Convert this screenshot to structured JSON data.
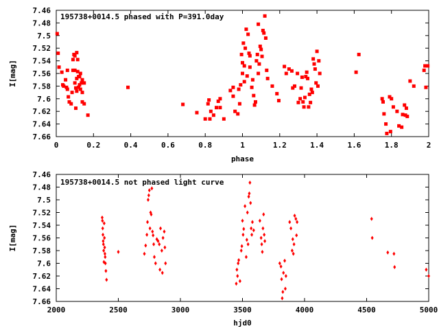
{
  "chart_data": [
    {
      "type": "scatter",
      "title": "195738+0014.5 phased with P=391.0day",
      "xlabel": "phase",
      "ylabel": "I[mag]",
      "xlim": [
        0,
        2
      ],
      "ylim": [
        7.46,
        7.66
      ],
      "y_inverted": true,
      "grid": false,
      "marker": "filled-square",
      "color": "#ff0000",
      "x_ticks": [
        "0",
        "0.2",
        "0.4",
        "0.6",
        "0.8",
        "1",
        "1.2",
        "1.4",
        "1.6",
        "1.8",
        "2"
      ],
      "y_ticks": [
        "7.46",
        "7.48",
        "7.5",
        "7.52",
        "7.54",
        "7.56",
        "7.58",
        "7.6",
        "7.62",
        "7.64",
        "7.66"
      ],
      "points": [
        [
          0.005,
          7.497
        ],
        [
          0.01,
          7.528
        ],
        [
          0.015,
          7.55
        ],
        [
          0.03,
          7.558
        ],
        [
          0.035,
          7.578
        ],
        [
          0.04,
          7.58
        ],
        [
          0.05,
          7.57
        ],
        [
          0.055,
          7.582
        ],
        [
          0.06,
          7.585
        ],
        [
          0.06,
          7.555
        ],
        [
          0.065,
          7.597
        ],
        [
          0.07,
          7.605
        ],
        [
          0.08,
          7.608
        ],
        [
          0.085,
          7.59
        ],
        [
          0.09,
          7.555
        ],
        [
          0.09,
          7.538
        ],
        [
          0.095,
          7.53
        ],
        [
          0.1,
          7.532
        ],
        [
          0.1,
          7.555
        ],
        [
          0.1,
          7.575
        ],
        [
          0.105,
          7.615
        ],
        [
          0.105,
          7.583
        ],
        [
          0.11,
          7.527
        ],
        [
          0.11,
          7.568
        ],
        [
          0.11,
          7.588
        ],
        [
          0.115,
          7.557
        ],
        [
          0.115,
          7.538
        ],
        [
          0.12,
          7.582
        ],
        [
          0.12,
          7.565
        ],
        [
          0.125,
          7.565
        ],
        [
          0.125,
          7.578
        ],
        [
          0.13,
          7.585
        ],
        [
          0.13,
          7.56
        ],
        [
          0.135,
          7.575
        ],
        [
          0.14,
          7.57
        ],
        [
          0.14,
          7.59
        ],
        [
          0.14,
          7.605
        ],
        [
          0.15,
          7.608
        ],
        [
          0.15,
          7.575
        ],
        [
          0.17,
          7.626
        ],
        [
          0.385,
          7.582
        ],
        [
          0.68,
          7.609
        ],
        [
          0.755,
          7.622
        ],
        [
          0.8,
          7.632
        ],
        [
          0.815,
          7.608
        ],
        [
          0.82,
          7.602
        ],
        [
          0.825,
          7.632
        ],
        [
          0.83,
          7.62
        ],
        [
          0.845,
          7.626
        ],
        [
          0.86,
          7.614
        ],
        [
          0.87,
          7.604
        ],
        [
          0.88,
          7.6
        ],
        [
          0.88,
          7.614
        ],
        [
          0.9,
          7.632
        ],
        [
          0.935,
          7.587
        ],
        [
          0.95,
          7.596
        ],
        [
          0.95,
          7.582
        ],
        [
          0.96,
          7.62
        ],
        [
          0.975,
          7.624
        ],
        [
          0.98,
          7.585
        ],
        [
          0.985,
          7.608
        ],
        [
          0.99,
          7.578
        ],
        [
          0.995,
          7.53
        ],
        [
          1.0,
          7.543
        ],
        [
          1.0,
          7.56
        ],
        [
          1.005,
          7.512
        ],
        [
          1.01,
          7.548
        ],
        [
          1.01,
          7.573
        ],
        [
          1.015,
          7.52
        ],
        [
          1.02,
          7.49
        ],
        [
          1.025,
          7.564
        ],
        [
          1.03,
          7.498
        ],
        [
          1.035,
          7.528
        ],
        [
          1.04,
          7.532
        ],
        [
          1.04,
          7.55
        ],
        [
          1.05,
          7.582
        ],
        [
          1.055,
          7.57
        ],
        [
          1.06,
          7.595
        ],
        [
          1.065,
          7.61
        ],
        [
          1.07,
          7.605
        ],
        [
          1.075,
          7.54
        ],
        [
          1.08,
          7.53
        ],
        [
          1.085,
          7.56
        ],
        [
          1.085,
          7.482
        ],
        [
          1.09,
          7.545
        ],
        [
          1.095,
          7.517
        ],
        [
          1.1,
          7.522
        ],
        [
          1.105,
          7.533
        ],
        [
          1.11,
          7.492
        ],
        [
          1.115,
          7.496
        ],
        [
          1.12,
          7.469
        ],
        [
          1.125,
          7.504
        ],
        [
          1.13,
          7.555
        ],
        [
          1.135,
          7.568
        ],
        [
          1.16,
          7.58
        ],
        [
          1.185,
          7.592
        ],
        [
          1.195,
          7.603
        ],
        [
          1.225,
          7.549
        ],
        [
          1.235,
          7.56
        ],
        [
          1.25,
          7.553
        ],
        [
          1.265,
          7.556
        ],
        [
          1.27,
          7.583
        ],
        [
          1.28,
          7.58
        ],
        [
          1.295,
          7.56
        ],
        [
          1.3,
          7.606
        ],
        [
          1.31,
          7.6
        ],
        [
          1.315,
          7.583
        ],
        [
          1.32,
          7.566
        ],
        [
          1.325,
          7.605
        ],
        [
          1.33,
          7.613
        ],
        [
          1.335,
          7.598
        ],
        [
          1.34,
          7.565
        ],
        [
          1.345,
          7.558
        ],
        [
          1.35,
          7.568
        ],
        [
          1.355,
          7.613
        ],
        [
          1.36,
          7.593
        ],
        [
          1.365,
          7.606
        ],
        [
          1.37,
          7.585
        ],
        [
          1.375,
          7.59
        ],
        [
          1.38,
          7.537
        ],
        [
          1.385,
          7.545
        ],
        [
          1.39,
          7.553
        ],
        [
          1.395,
          7.575
        ],
        [
          1.4,
          7.525
        ],
        [
          1.405,
          7.58
        ],
        [
          1.41,
          7.54
        ],
        [
          1.415,
          7.56
        ],
        [
          1.61,
          7.558
        ],
        [
          1.625,
          7.53
        ],
        [
          1.75,
          7.6
        ],
        [
          1.755,
          7.605
        ],
        [
          1.76,
          7.624
        ],
        [
          1.77,
          7.64
        ],
        [
          1.775,
          7.655
        ],
        [
          1.79,
          7.597
        ],
        [
          1.795,
          7.652
        ],
        [
          1.8,
          7.6
        ],
        [
          1.81,
          7.613
        ],
        [
          1.83,
          7.62
        ],
        [
          1.84,
          7.643
        ],
        [
          1.855,
          7.645
        ],
        [
          1.86,
          7.625
        ],
        [
          1.87,
          7.61
        ],
        [
          1.875,
          7.626
        ],
        [
          1.88,
          7.615
        ],
        [
          1.885,
          7.628
        ],
        [
          1.9,
          7.572
        ],
        [
          1.92,
          7.58
        ],
        [
          1.975,
          7.555
        ],
        [
          1.98,
          7.548
        ],
        [
          1.985,
          7.582
        ],
        [
          1.995,
          7.548
        ]
      ]
    },
    {
      "type": "scatter",
      "title": "195738+0014.5 not phased light curve",
      "xlabel": "hjd0",
      "ylabel": "I[mag]",
      "xlim": [
        2000,
        5000
      ],
      "ylim": [
        7.46,
        7.66
      ],
      "y_inverted": true,
      "grid": false,
      "marker": "diamond",
      "color": "#ff0000",
      "x_ticks": [
        "2000",
        "2500",
        "3000",
        "3500",
        "4000",
        "4500",
        "5000"
      ],
      "y_ticks": [
        "7.46",
        "7.48",
        "7.5",
        "7.52",
        "7.54",
        "7.56",
        "7.58",
        "7.6",
        "7.62",
        "7.64",
        "7.66"
      ],
      "points": [
        [
          2370,
          7.528
        ],
        [
          2372,
          7.533
        ],
        [
          2374,
          7.545
        ],
        [
          2376,
          7.555
        ],
        [
          2378,
          7.565
        ],
        [
          2380,
          7.57
        ],
        [
          2382,
          7.58
        ],
        [
          2384,
          7.598
        ],
        [
          2386,
          7.537
        ],
        [
          2388,
          7.56
        ],
        [
          2390,
          7.575
        ],
        [
          2392,
          7.585
        ],
        [
          2394,
          7.59
        ],
        [
          2396,
          7.6
        ],
        [
          2400,
          7.612
        ],
        [
          2405,
          7.626
        ],
        [
          2500,
          7.582
        ],
        [
          2710,
          7.585
        ],
        [
          2720,
          7.572
        ],
        [
          2730,
          7.555
        ],
        [
          2735,
          7.535
        ],
        [
          2740,
          7.5
        ],
        [
          2745,
          7.493
        ],
        [
          2750,
          7.485
        ],
        [
          2755,
          7.545
        ],
        [
          2760,
          7.52
        ],
        [
          2765,
          7.523
        ],
        [
          2770,
          7.482
        ],
        [
          2775,
          7.55
        ],
        [
          2780,
          7.556
        ],
        [
          2785,
          7.57
        ],
        [
          2790,
          7.59
        ],
        [
          2800,
          7.6
        ],
        [
          2810,
          7.562
        ],
        [
          2820,
          7.565
        ],
        [
          2830,
          7.57
        ],
        [
          2835,
          7.61
        ],
        [
          2840,
          7.545
        ],
        [
          2850,
          7.58
        ],
        [
          2855,
          7.615
        ],
        [
          2860,
          7.56
        ],
        [
          2870,
          7.55
        ],
        [
          2875,
          7.575
        ],
        [
          2880,
          7.6
        ],
        [
          3450,
          7.632
        ],
        [
          3455,
          7.61
        ],
        [
          3460,
          7.62
        ],
        [
          3465,
          7.6
        ],
        [
          3470,
          7.595
        ],
        [
          3480,
          7.628
        ],
        [
          3490,
          7.58
        ],
        [
          3495,
          7.573
        ],
        [
          3500,
          7.533
        ],
        [
          3505,
          7.555
        ],
        [
          3510,
          7.546
        ],
        [
          3520,
          7.51
        ],
        [
          3530,
          7.59
        ],
        [
          3535,
          7.563
        ],
        [
          3540,
          7.52
        ],
        [
          3545,
          7.57
        ],
        [
          3550,
          7.495
        ],
        [
          3555,
          7.49
        ],
        [
          3560,
          7.473
        ],
        [
          3565,
          7.505
        ],
        [
          3570,
          7.545
        ],
        [
          3575,
          7.555
        ],
        [
          3580,
          7.535
        ],
        [
          3590,
          7.548
        ],
        [
          3640,
          7.533
        ],
        [
          3650,
          7.56
        ],
        [
          3655,
          7.57
        ],
        [
          3660,
          7.582
        ],
        [
          3665,
          7.545
        ],
        [
          3670,
          7.523
        ],
        [
          3675,
          7.555
        ],
        [
          3680,
          7.565
        ],
        [
          3800,
          7.6
        ],
        [
          3810,
          7.605
        ],
        [
          3815,
          7.625
        ],
        [
          3820,
          7.655
        ],
        [
          3825,
          7.645
        ],
        [
          3830,
          7.615
        ],
        [
          3840,
          7.596
        ],
        [
          3845,
          7.64
        ],
        [
          3850,
          7.62
        ],
        [
          3880,
          7.535
        ],
        [
          3890,
          7.545
        ],
        [
          3900,
          7.58
        ],
        [
          3905,
          7.562
        ],
        [
          3910,
          7.585
        ],
        [
          3915,
          7.57
        ],
        [
          3920,
          7.525
        ],
        [
          3930,
          7.53
        ],
        [
          3935,
          7.556
        ],
        [
          3940,
          7.535
        ],
        [
          4540,
          7.53
        ],
        [
          4545,
          7.56
        ],
        [
          4670,
          7.583
        ],
        [
          4720,
          7.585
        ],
        [
          4725,
          7.606
        ],
        [
          4980,
          7.61
        ],
        [
          5000,
          7.62
        ]
      ]
    }
  ]
}
